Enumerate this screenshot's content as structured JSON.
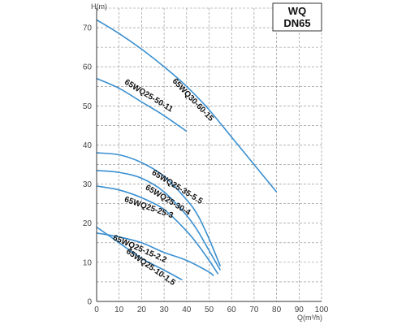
{
  "chart_data": {
    "type": "line",
    "ylabel": "H(m)",
    "xlabel": "Q(m³/h)",
    "xlim": [
      0,
      100
    ],
    "ylim": [
      0,
      75
    ],
    "xticks": [
      0,
      10,
      20,
      30,
      40,
      50,
      60,
      70,
      80,
      90,
      100
    ],
    "yticks": [
      0,
      10,
      20,
      30,
      40,
      50,
      60,
      70
    ],
    "grid": true,
    "badge": [
      "WQ",
      "DN65"
    ],
    "colors": {
      "curve": "#3a8fd0",
      "grid": "#888888",
      "axis": "#333333"
    },
    "series": [
      {
        "name": "65WQ30-60-15",
        "x": [
          0,
          10,
          20,
          30,
          40,
          50,
          60,
          70,
          80
        ],
        "y": [
          72,
          68.5,
          64.5,
          60,
          55,
          49,
          42,
          35,
          28
        ]
      },
      {
        "name": "65WQ25-50-11",
        "x": [
          0,
          10,
          20,
          30,
          40
        ],
        "y": [
          57,
          54.5,
          51,
          47.5,
          43.5
        ]
      },
      {
        "name": "65WQ25-35-5.5",
        "x": [
          0,
          10,
          20,
          30,
          40,
          45,
          50,
          55
        ],
        "y": [
          38,
          37.5,
          35.5,
          32,
          26,
          22,
          16,
          9
        ]
      },
      {
        "name": "65WQ25-30-4",
        "x": [
          0,
          10,
          20,
          30,
          40,
          45,
          50,
          55
        ],
        "y": [
          33.5,
          33,
          31.5,
          28,
          22,
          18,
          13,
          8
        ]
      },
      {
        "name": "65WQ25-25-3",
        "x": [
          0,
          10,
          20,
          30,
          40,
          45,
          50,
          54
        ],
        "y": [
          29.5,
          28.5,
          26.5,
          23.5,
          18,
          14.5,
          10.5,
          7
        ]
      },
      {
        "name": "65WQ25-15-2.2",
        "x": [
          0,
          10,
          20,
          30,
          40,
          50,
          52
        ],
        "y": [
          17.5,
          16.5,
          15,
          12.5,
          10.5,
          7.5,
          6.5
        ]
      },
      {
        "name": "65WQ25-10-1.5",
        "x": [
          0,
          10,
          20,
          30,
          38
        ],
        "y": [
          19,
          15,
          11,
          8,
          5.5
        ]
      }
    ]
  }
}
